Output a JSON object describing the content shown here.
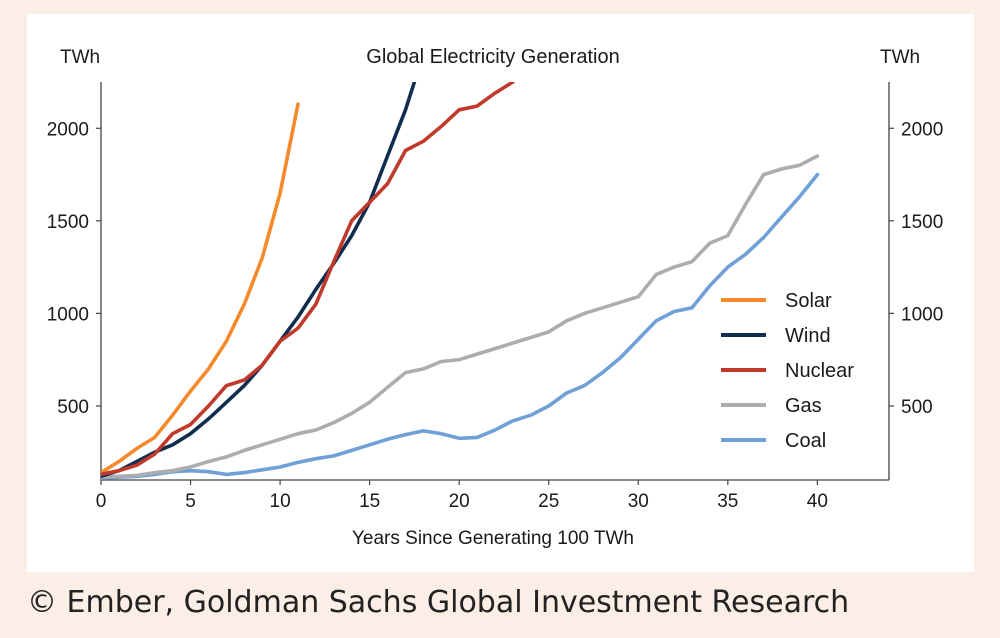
{
  "chart_data": {
    "type": "line",
    "title": "Global Electricity Generation",
    "xlabel": "Years Since Generating 100 TWh",
    "ylabel_left": "TWh",
    "ylabel_right": "TWh",
    "xlim": [
      0,
      44
    ],
    "ylim": [
      100,
      2250
    ],
    "x_ticks": [
      0,
      5,
      10,
      15,
      20,
      25,
      30,
      35,
      40
    ],
    "y_ticks": [
      500,
      1000,
      1500,
      2000
    ],
    "grid": false,
    "legend_position": "center-right",
    "series": [
      {
        "name": "Solar",
        "color": "#f58a2c",
        "x": [
          0,
          1,
          2,
          3,
          4,
          5,
          6,
          7,
          8,
          9,
          10,
          11
        ],
        "y": [
          140,
          200,
          270,
          330,
          450,
          580,
          700,
          850,
          1050,
          1300,
          1650,
          2130
        ]
      },
      {
        "name": "Wind",
        "color": "#0f2d4e",
        "x": [
          0,
          1,
          2,
          3,
          4,
          5,
          6,
          7,
          8,
          9,
          10,
          11,
          12,
          13,
          14,
          15,
          16,
          17,
          17.5
        ],
        "y": [
          120,
          150,
          200,
          250,
          290,
          350,
          430,
          520,
          610,
          720,
          850,
          980,
          1130,
          1270,
          1420,
          1600,
          1850,
          2100,
          2250
        ]
      },
      {
        "name": "Nuclear",
        "color": "#c0392b",
        "x": [
          0,
          1,
          2,
          3,
          4,
          5,
          6,
          7,
          8,
          9,
          10,
          11,
          12,
          13,
          14,
          15,
          16,
          17,
          18,
          19,
          20,
          21,
          22,
          23
        ],
        "y": [
          130,
          150,
          180,
          240,
          350,
          400,
          500,
          610,
          640,
          720,
          850,
          920,
          1050,
          1280,
          1500,
          1600,
          1700,
          1880,
          1930,
          2010,
          2100,
          2120,
          2190,
          2250
        ]
      },
      {
        "name": "Gas",
        "color": "#adadad",
        "x": [
          0,
          1,
          2,
          3,
          4,
          5,
          6,
          7,
          8,
          9,
          10,
          11,
          12,
          13,
          14,
          15,
          16,
          17,
          18,
          19,
          20,
          21,
          22,
          23,
          24,
          25,
          26,
          27,
          28,
          29,
          30,
          31,
          32,
          33,
          34,
          35,
          36,
          37,
          38,
          39,
          40
        ],
        "y": [
          115,
          120,
          125,
          140,
          150,
          170,
          200,
          225,
          260,
          290,
          320,
          350,
          370,
          410,
          460,
          520,
          600,
          680,
          700,
          740,
          750,
          780,
          810,
          840,
          870,
          900,
          960,
          1000,
          1030,
          1060,
          1090,
          1210,
          1250,
          1280,
          1380,
          1420,
          1590,
          1750,
          1780,
          1800,
          1850
        ]
      },
      {
        "name": "Coal",
        "color": "#6fa0d8",
        "x": [
          0,
          1,
          2,
          3,
          4,
          5,
          6,
          7,
          8,
          9,
          10,
          11,
          12,
          13,
          14,
          15,
          16,
          17,
          18,
          19,
          20,
          21,
          22,
          23,
          24,
          25,
          26,
          27,
          28,
          29,
          30,
          31,
          32,
          33,
          34,
          35,
          36,
          37,
          38,
          39,
          40
        ],
        "y": [
          110,
          115,
          120,
          130,
          145,
          150,
          145,
          130,
          140,
          155,
          170,
          195,
          215,
          230,
          260,
          290,
          320,
          345,
          365,
          350,
          325,
          330,
          370,
          420,
          450,
          500,
          570,
          610,
          680,
          760,
          860,
          960,
          1010,
          1030,
          1150,
          1250,
          1320,
          1410,
          1520,
          1630,
          1750
        ]
      }
    ]
  },
  "source": "© Ember, Goldman Sachs Global Investment Research"
}
